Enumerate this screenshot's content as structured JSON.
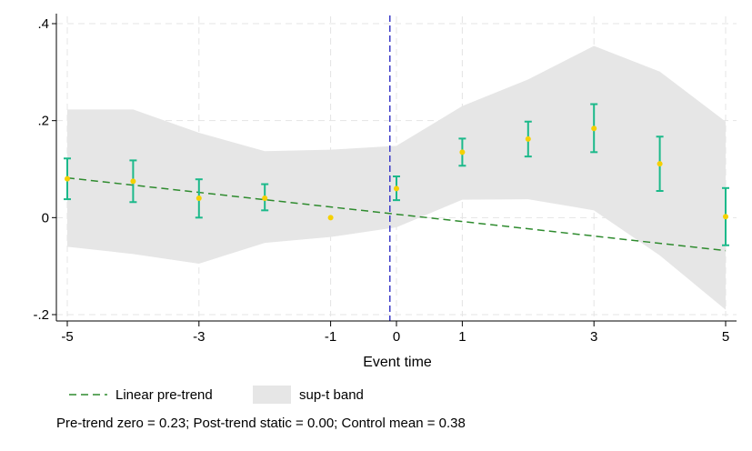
{
  "chart_data": {
    "type": "scatter",
    "title": "",
    "xlabel": "Event time",
    "ylabel": "",
    "xlim": [
      -5,
      5
    ],
    "ylim": [
      -0.2,
      0.4
    ],
    "x_ticks": [
      -5,
      -3,
      -1,
      1,
      3,
      5
    ],
    "x_tick_labels": [
      "-5",
      "-3",
      "-1",
      "1",
      "3",
      "5"
    ],
    "extra_x_tick": {
      "x": 0,
      "label": "0"
    },
    "y_ticks": [
      -0.2,
      0,
      0.2,
      0.4
    ],
    "y_tick_labels": [
      "-.2",
      "0",
      ".2",
      ".4"
    ],
    "grid": true,
    "reference_line_x": -0.1,
    "series": [
      {
        "kind": "point-estimates",
        "x": [
          -5,
          -4,
          -3,
          -2,
          -1,
          0,
          1,
          2,
          3,
          4,
          5
        ],
        "y": [
          0.08,
          0.075,
          0.04,
          0.04,
          0.0,
          0.06,
          0.135,
          0.162,
          0.184,
          0.111,
          0.002
        ],
        "ci_low": [
          0.038,
          0.032,
          0.0,
          0.015,
          null,
          0.036,
          0.107,
          0.126,
          0.135,
          0.055,
          -0.057
        ],
        "ci_high": [
          0.122,
          0.118,
          0.079,
          0.069,
          null,
          0.085,
          0.163,
          0.198,
          0.234,
          0.167,
          0.061
        ]
      },
      {
        "name": "Linear pre-trend",
        "kind": "trend-line",
        "x": [
          -5,
          5
        ],
        "y": [
          0.082,
          -0.068
        ]
      },
      {
        "name": "sup-t band",
        "kind": "band",
        "x": [
          -5,
          -4,
          -3,
          -2,
          -1,
          0,
          1,
          2,
          3,
          4,
          5
        ],
        "low": [
          -0.06,
          -0.075,
          -0.095,
          -0.052,
          -0.04,
          -0.02,
          0.037,
          0.038,
          0.015,
          -0.078,
          -0.19
        ],
        "high": [
          0.223,
          0.223,
          0.175,
          0.137,
          0.14,
          0.148,
          0.23,
          0.285,
          0.354,
          0.301,
          0.198
        ]
      }
    ],
    "legend": {
      "placement": "bottom",
      "entries": [
        {
          "label": "Linear pre-trend",
          "symbol": "dashed-line"
        },
        {
          "label": "sup-t band",
          "symbol": "area"
        }
      ]
    },
    "note": "Pre-trend zero = 0.23; Post-trend static = 0.00; Control mean = 0.38"
  },
  "colors": {
    "band": "#e6e6e6",
    "trend": "#2e8b2e",
    "ci": "#1cb98a",
    "point": "#f5d000",
    "refline": "#3b3bc8",
    "grid": "#e4e4e4"
  }
}
